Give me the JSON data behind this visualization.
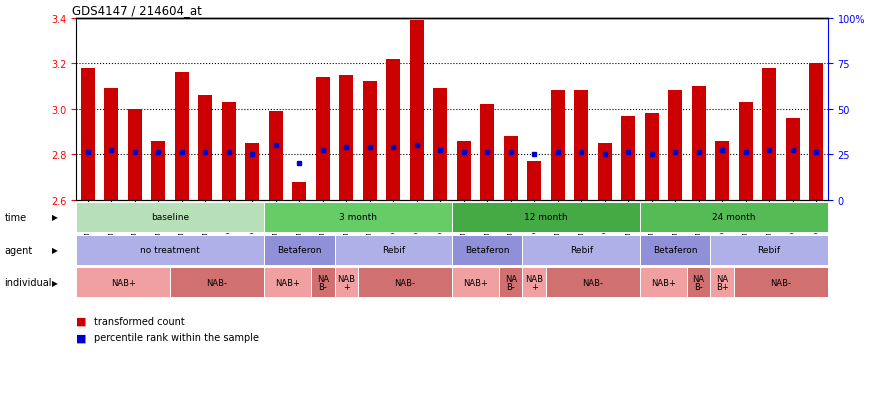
{
  "title": "GDS4147 / 214604_at",
  "ylim": [
    2.6,
    3.4
  ],
  "yticks": [
    2.6,
    2.8,
    3.0,
    3.2,
    3.4
  ],
  "right_yticks": [
    0,
    25,
    50,
    75,
    100
  ],
  "right_ylabels": [
    "0",
    "25",
    "50",
    "75",
    "100%"
  ],
  "bar_width": 0.6,
  "samples": [
    "GSM641342",
    "GSM641346",
    "GSM641350",
    "GSM641354",
    "GSM641358",
    "GSM641362",
    "GSM641366",
    "GSM641370",
    "GSM641343",
    "GSM641351",
    "GSM641355",
    "GSM641359",
    "GSM641347",
    "GSM641363",
    "GSM641367",
    "GSM641371",
    "GSM641344",
    "GSM641352",
    "GSM641356",
    "GSM641360",
    "GSM641348",
    "GSM641364",
    "GSM641368",
    "GSM641372",
    "GSM641345",
    "GSM641353",
    "GSM641357",
    "GSM641361",
    "GSM641349",
    "GSM641365",
    "GSM641369",
    "GSM641373"
  ],
  "bar_values": [
    3.18,
    3.09,
    3.0,
    2.86,
    3.16,
    3.06,
    3.03,
    2.85,
    2.99,
    2.68,
    3.14,
    3.15,
    3.12,
    3.22,
    3.39,
    3.09,
    2.86,
    3.02,
    2.88,
    2.77,
    3.08,
    3.08,
    2.85,
    2.97,
    2.98,
    3.08,
    3.1,
    2.86,
    3.03,
    3.18,
    2.96,
    3.2
  ],
  "blue_dot_values": [
    2.81,
    2.82,
    2.81,
    2.81,
    2.81,
    2.81,
    2.81,
    2.8,
    2.84,
    2.76,
    2.82,
    2.83,
    2.83,
    2.83,
    2.84,
    2.82,
    2.81,
    2.81,
    2.81,
    2.8,
    2.81,
    2.81,
    2.8,
    2.81,
    2.8,
    2.81,
    2.81,
    2.82,
    2.81,
    2.82,
    2.82,
    2.81
  ],
  "bar_color": "#cc0000",
  "blue_dot_color": "#0000cc",
  "dotted_lines": [
    2.8,
    3.0,
    3.2
  ],
  "background_color": "#ffffff",
  "plot_bg": "#ffffff",
  "time_row": {
    "label": "time",
    "segments": [
      {
        "text": "baseline",
        "start": 0,
        "end": 8,
        "color": "#b8e0b8"
      },
      {
        "text": "3 month",
        "start": 8,
        "end": 16,
        "color": "#66cc66"
      },
      {
        "text": "12 month",
        "start": 16,
        "end": 24,
        "color": "#44aa44"
      },
      {
        "text": "24 month",
        "start": 24,
        "end": 32,
        "color": "#55bb55"
      }
    ]
  },
  "agent_row": {
    "label": "agent",
    "segments": [
      {
        "text": "no treatment",
        "start": 0,
        "end": 8,
        "color": "#b0b0e8"
      },
      {
        "text": "Betaferon",
        "start": 8,
        "end": 11,
        "color": "#9090d8"
      },
      {
        "text": "Rebif",
        "start": 11,
        "end": 16,
        "color": "#b0b0e8"
      },
      {
        "text": "Betaferon",
        "start": 16,
        "end": 19,
        "color": "#9090d8"
      },
      {
        "text": "Rebif",
        "start": 19,
        "end": 24,
        "color": "#b0b0e8"
      },
      {
        "text": "Betaferon",
        "start": 24,
        "end": 27,
        "color": "#9090d8"
      },
      {
        "text": "Rebif",
        "start": 27,
        "end": 32,
        "color": "#b0b0e8"
      }
    ]
  },
  "individual_row": {
    "label": "individual",
    "segments": [
      {
        "text": "NAB+",
        "start": 0,
        "end": 4,
        "color": "#f0a0a0"
      },
      {
        "text": "NAB-",
        "start": 4,
        "end": 8,
        "color": "#d07070"
      },
      {
        "text": "NAB+",
        "start": 8,
        "end": 10,
        "color": "#f0a0a0"
      },
      {
        "text": "NA\nB-",
        "start": 10,
        "end": 11,
        "color": "#d07070"
      },
      {
        "text": "NAB\n+",
        "start": 11,
        "end": 12,
        "color": "#f0a0a0"
      },
      {
        "text": "NAB-",
        "start": 12,
        "end": 16,
        "color": "#d07070"
      },
      {
        "text": "NAB+",
        "start": 16,
        "end": 18,
        "color": "#f0a0a0"
      },
      {
        "text": "NA\nB-",
        "start": 18,
        "end": 19,
        "color": "#d07070"
      },
      {
        "text": "NAB\n+",
        "start": 19,
        "end": 20,
        "color": "#f0a0a0"
      },
      {
        "text": "NAB-",
        "start": 20,
        "end": 24,
        "color": "#d07070"
      },
      {
        "text": "NAB+",
        "start": 24,
        "end": 26,
        "color": "#f0a0a0"
      },
      {
        "text": "NA\nB-",
        "start": 26,
        "end": 27,
        "color": "#d07070"
      },
      {
        "text": "NA\nB+",
        "start": 27,
        "end": 28,
        "color": "#f0a0a0"
      },
      {
        "text": "NAB-",
        "start": 28,
        "end": 32,
        "color": "#d07070"
      }
    ]
  },
  "legend_items": [
    {
      "color": "#cc0000",
      "label": "transformed count"
    },
    {
      "color": "#0000cc",
      "label": "percentile rank within the sample"
    }
  ]
}
